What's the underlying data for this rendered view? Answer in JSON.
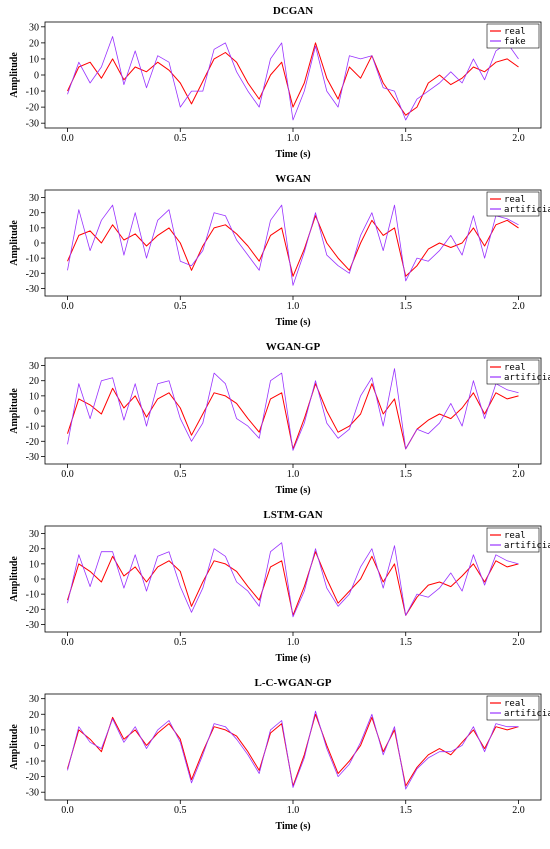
{
  "chart_data": [
    {
      "type": "line",
      "title": "DCGAN",
      "xlabel": "Time (s)",
      "ylabel": "Amplitude",
      "xlim": [
        -0.1,
        2.1
      ],
      "ylim": [
        -33,
        33
      ],
      "xticks": [
        "0.0",
        "0.5",
        "1.0",
        "1.5",
        "2.0"
      ],
      "yticks": [
        "30",
        "20",
        "10",
        "0",
        "-10",
        "-20",
        "-30"
      ],
      "legend_position": "top-right",
      "series": [
        {
          "name": "real",
          "color": "#ff0000",
          "x": [
            0.0,
            0.05,
            0.1,
            0.15,
            0.2,
            0.25,
            0.3,
            0.35,
            0.4,
            0.45,
            0.5,
            0.55,
            0.6,
            0.65,
            0.7,
            0.75,
            0.8,
            0.85,
            0.9,
            0.95,
            1.0,
            1.05,
            1.1,
            1.15,
            1.2,
            1.25,
            1.3,
            1.35,
            1.4,
            1.45,
            1.5,
            1.55,
            1.6,
            1.65,
            1.7,
            1.75,
            1.8,
            1.85,
            1.9,
            1.95,
            2.0
          ],
          "y": [
            -10,
            5,
            8,
            -2,
            10,
            -3,
            5,
            2,
            8,
            3,
            -5,
            -18,
            -4,
            10,
            14,
            8,
            -5,
            -15,
            0,
            8,
            -20,
            -5,
            20,
            -2,
            -15,
            5,
            -2,
            12,
            -5,
            -15,
            -25,
            -20,
            -5,
            0,
            -6,
            -2,
            5,
            2,
            8,
            10,
            5
          ]
        },
        {
          "name": "fake",
          "color": "#9933ff",
          "x": [
            0.0,
            0.05,
            0.1,
            0.15,
            0.2,
            0.25,
            0.3,
            0.35,
            0.4,
            0.45,
            0.5,
            0.55,
            0.6,
            0.65,
            0.7,
            0.75,
            0.8,
            0.85,
            0.9,
            0.95,
            1.0,
            1.05,
            1.1,
            1.15,
            1.2,
            1.25,
            1.3,
            1.35,
            1.4,
            1.45,
            1.5,
            1.55,
            1.6,
            1.65,
            1.7,
            1.75,
            1.8,
            1.85,
            1.9,
            1.95,
            2.0
          ],
          "y": [
            -12,
            8,
            -5,
            5,
            24,
            -6,
            15,
            -8,
            12,
            8,
            -20,
            -10,
            -10,
            16,
            20,
            2,
            -10,
            -20,
            10,
            20,
            -28,
            -10,
            18,
            -10,
            -20,
            12,
            10,
            12,
            -8,
            -10,
            -28,
            -15,
            -10,
            -5,
            2,
            -5,
            10,
            -3,
            15,
            20,
            10
          ]
        }
      ]
    },
    {
      "type": "line",
      "title": "WGAN",
      "xlabel": "Time (s)",
      "ylabel": "Amplitude",
      "xlim": [
        -0.1,
        2.1
      ],
      "ylim": [
        -35,
        35
      ],
      "xticks": [
        "0.0",
        "0.5",
        "1.0",
        "1.5",
        "2.0"
      ],
      "yticks": [
        "30",
        "20",
        "10",
        "0",
        "-10",
        "-20",
        "-30"
      ],
      "legend_position": "top-right",
      "series": [
        {
          "name": "real",
          "color": "#ff0000",
          "x": [
            0.0,
            0.05,
            0.1,
            0.15,
            0.2,
            0.25,
            0.3,
            0.35,
            0.4,
            0.45,
            0.5,
            0.55,
            0.6,
            0.65,
            0.7,
            0.75,
            0.8,
            0.85,
            0.9,
            0.95,
            1.0,
            1.05,
            1.1,
            1.15,
            1.2,
            1.25,
            1.3,
            1.35,
            1.4,
            1.45,
            1.5,
            1.55,
            1.6,
            1.65,
            1.7,
            1.75,
            1.8,
            1.85,
            1.9,
            1.95,
            2.0
          ],
          "y": [
            -12,
            5,
            8,
            0,
            12,
            2,
            6,
            -2,
            5,
            10,
            0,
            -18,
            -2,
            10,
            12,
            6,
            -2,
            -12,
            5,
            10,
            -22,
            -4,
            18,
            0,
            -10,
            -18,
            0,
            15,
            5,
            10,
            -22,
            -15,
            -4,
            0,
            -3,
            0,
            10,
            -2,
            12,
            15,
            10
          ]
        },
        {
          "name": "artificial",
          "color": "#9933ff",
          "x": [
            0.0,
            0.05,
            0.1,
            0.15,
            0.2,
            0.25,
            0.3,
            0.35,
            0.4,
            0.45,
            0.5,
            0.55,
            0.6,
            0.65,
            0.7,
            0.75,
            0.8,
            0.85,
            0.9,
            0.95,
            1.0,
            1.05,
            1.1,
            1.15,
            1.2,
            1.25,
            1.3,
            1.35,
            1.4,
            1.45,
            1.5,
            1.55,
            1.6,
            1.65,
            1.7,
            1.75,
            1.8,
            1.85,
            1.9,
            1.95,
            2.0
          ],
          "y": [
            -18,
            22,
            -5,
            15,
            25,
            -8,
            20,
            -10,
            15,
            22,
            -12,
            -15,
            -5,
            20,
            18,
            2,
            -8,
            -18,
            15,
            25,
            -28,
            -6,
            20,
            -8,
            -15,
            -20,
            5,
            20,
            -5,
            25,
            -25,
            -10,
            -12,
            -5,
            5,
            -8,
            18,
            -10,
            18,
            16,
            12
          ]
        }
      ]
    },
    {
      "type": "line",
      "title": "WGAN-GP",
      "xlabel": "Time (s)",
      "ylabel": "Amplitude",
      "xlim": [
        -0.1,
        2.1
      ],
      "ylim": [
        -35,
        35
      ],
      "xticks": [
        "0.0",
        "0.5",
        "1.0",
        "1.5",
        "2.0"
      ],
      "yticks": [
        "30",
        "20",
        "10",
        "0",
        "-10",
        "-20",
        "-30"
      ],
      "legend_position": "top-right",
      "series": [
        {
          "name": "real",
          "color": "#ff0000",
          "x": [
            0.0,
            0.05,
            0.1,
            0.15,
            0.2,
            0.25,
            0.3,
            0.35,
            0.4,
            0.45,
            0.5,
            0.55,
            0.6,
            0.65,
            0.7,
            0.75,
            0.8,
            0.85,
            0.9,
            0.95,
            1.0,
            1.05,
            1.1,
            1.15,
            1.2,
            1.25,
            1.3,
            1.35,
            1.4,
            1.45,
            1.5,
            1.55,
            1.6,
            1.65,
            1.7,
            1.75,
            1.8,
            1.85,
            1.9,
            1.95,
            2.0
          ],
          "y": [
            -15,
            8,
            4,
            -2,
            15,
            2,
            10,
            -4,
            8,
            12,
            2,
            -16,
            -2,
            12,
            10,
            5,
            -5,
            -14,
            8,
            12,
            -25,
            -5,
            18,
            0,
            -14,
            -10,
            -2,
            18,
            -2,
            8,
            -25,
            -12,
            -6,
            -2,
            -5,
            2,
            12,
            -2,
            12,
            8,
            10
          ]
        },
        {
          "name": "artificial",
          "color": "#9933ff",
          "x": [
            0.0,
            0.05,
            0.1,
            0.15,
            0.2,
            0.25,
            0.3,
            0.35,
            0.4,
            0.45,
            0.5,
            0.55,
            0.6,
            0.65,
            0.7,
            0.75,
            0.8,
            0.85,
            0.9,
            0.95,
            1.0,
            1.05,
            1.1,
            1.15,
            1.2,
            1.25,
            1.3,
            1.35,
            1.4,
            1.45,
            1.5,
            1.55,
            1.6,
            1.65,
            1.7,
            1.75,
            1.8,
            1.85,
            1.9,
            1.95,
            2.0
          ],
          "y": [
            -22,
            18,
            -5,
            20,
            22,
            -6,
            18,
            -10,
            18,
            20,
            -5,
            -20,
            -8,
            25,
            18,
            -5,
            -10,
            -18,
            20,
            25,
            -26,
            -8,
            20,
            -8,
            -18,
            -12,
            10,
            22,
            -10,
            28,
            -25,
            -12,
            -15,
            -8,
            5,
            -10,
            20,
            -5,
            18,
            14,
            12
          ]
        }
      ]
    },
    {
      "type": "line",
      "title": "LSTM-GAN",
      "xlabel": "Time (s)",
      "ylabel": "Amplitude",
      "xlim": [
        -0.1,
        2.1
      ],
      "ylim": [
        -35,
        35
      ],
      "xticks": [
        "0.0",
        "0.5",
        "1.0",
        "1.5",
        "2.0"
      ],
      "yticks": [
        "30",
        "20",
        "10",
        "0",
        "-10",
        "-20",
        "-30"
      ],
      "legend_position": "top-right",
      "series": [
        {
          "name": "real",
          "color": "#ff0000",
          "x": [
            0.0,
            0.05,
            0.1,
            0.15,
            0.2,
            0.25,
            0.3,
            0.35,
            0.4,
            0.45,
            0.5,
            0.55,
            0.6,
            0.65,
            0.7,
            0.75,
            0.8,
            0.85,
            0.9,
            0.95,
            1.0,
            1.05,
            1.1,
            1.15,
            1.2,
            1.25,
            1.3,
            1.35,
            1.4,
            1.45,
            1.5,
            1.55,
            1.6,
            1.65,
            1.7,
            1.75,
            1.8,
            1.85,
            1.9,
            1.95,
            2.0
          ],
          "y": [
            -14,
            10,
            5,
            -2,
            15,
            2,
            8,
            -2,
            8,
            12,
            5,
            -18,
            -2,
            12,
            10,
            5,
            -5,
            -14,
            8,
            12,
            -24,
            -5,
            18,
            0,
            -16,
            -8,
            0,
            15,
            -2,
            10,
            -24,
            -12,
            -4,
            -2,
            -5,
            2,
            10,
            -2,
            12,
            8,
            10
          ]
        },
        {
          "name": "artificial",
          "color": "#9933ff",
          "x": [
            0.0,
            0.05,
            0.1,
            0.15,
            0.2,
            0.25,
            0.3,
            0.35,
            0.4,
            0.45,
            0.5,
            0.55,
            0.6,
            0.65,
            0.7,
            0.75,
            0.8,
            0.85,
            0.9,
            0.95,
            1.0,
            1.05,
            1.1,
            1.15,
            1.2,
            1.25,
            1.3,
            1.35,
            1.4,
            1.45,
            1.5,
            1.55,
            1.6,
            1.65,
            1.7,
            1.75,
            1.8,
            1.85,
            1.9,
            1.95,
            2.0
          ],
          "y": [
            -16,
            16,
            -5,
            18,
            18,
            -6,
            16,
            -8,
            15,
            18,
            -5,
            -22,
            -6,
            20,
            15,
            -2,
            -8,
            -18,
            18,
            24,
            -25,
            -8,
            20,
            -6,
            -18,
            -10,
            8,
            20,
            -6,
            22,
            -24,
            -10,
            -12,
            -6,
            4,
            -8,
            16,
            -4,
            16,
            12,
            10
          ]
        }
      ]
    },
    {
      "type": "line",
      "title": "L-C-WGAN-GP",
      "xlabel": "Time (s)",
      "ylabel": "Amplitude",
      "xlim": [
        -0.1,
        2.1
      ],
      "ylim": [
        -35,
        33
      ],
      "xticks": [
        "0.0",
        "0.5",
        "1.0",
        "1.5",
        "2.0"
      ],
      "yticks": [
        "30",
        "20",
        "10",
        "0",
        "-10",
        "-20",
        "-30"
      ],
      "legend_position": "top-right",
      "series": [
        {
          "name": "real",
          "color": "#ff0000",
          "x": [
            0.0,
            0.05,
            0.1,
            0.15,
            0.2,
            0.25,
            0.3,
            0.35,
            0.4,
            0.45,
            0.5,
            0.55,
            0.6,
            0.65,
            0.7,
            0.75,
            0.8,
            0.85,
            0.9,
            0.95,
            1.0,
            1.05,
            1.1,
            1.15,
            1.2,
            1.25,
            1.3,
            1.35,
            1.4,
            1.45,
            1.5,
            1.55,
            1.6,
            1.65,
            1.7,
            1.75,
            1.8,
            1.85,
            1.9,
            1.95,
            2.0
          ],
          "y": [
            -15,
            10,
            4,
            -4,
            18,
            4,
            10,
            0,
            8,
            14,
            4,
            -22,
            -4,
            12,
            10,
            6,
            -4,
            -16,
            8,
            14,
            -26,
            -6,
            20,
            0,
            -18,
            -10,
            0,
            18,
            -4,
            10,
            -26,
            -14,
            -6,
            -2,
            -6,
            2,
            10,
            -2,
            12,
            10,
            12
          ]
        },
        {
          "name": "artificial",
          "color": "#9933ff",
          "x": [
            0.0,
            0.05,
            0.1,
            0.15,
            0.2,
            0.25,
            0.3,
            0.35,
            0.4,
            0.45,
            0.5,
            0.55,
            0.6,
            0.65,
            0.7,
            0.75,
            0.8,
            0.85,
            0.9,
            0.95,
            1.0,
            1.05,
            1.1,
            1.15,
            1.2,
            1.25,
            1.3,
            1.35,
            1.4,
            1.45,
            1.5,
            1.55,
            1.6,
            1.65,
            1.7,
            1.75,
            1.8,
            1.85,
            1.9,
            1.95,
            2.0
          ],
          "y": [
            -16,
            12,
            2,
            -2,
            17,
            2,
            12,
            -2,
            10,
            16,
            2,
            -24,
            -6,
            14,
            12,
            4,
            -6,
            -18,
            10,
            16,
            -27,
            -8,
            22,
            -2,
            -20,
            -12,
            2,
            20,
            -6,
            12,
            -28,
            -15,
            -8,
            -4,
            -4,
            0,
            12,
            -4,
            14,
            12,
            12
          ]
        }
      ]
    }
  ]
}
